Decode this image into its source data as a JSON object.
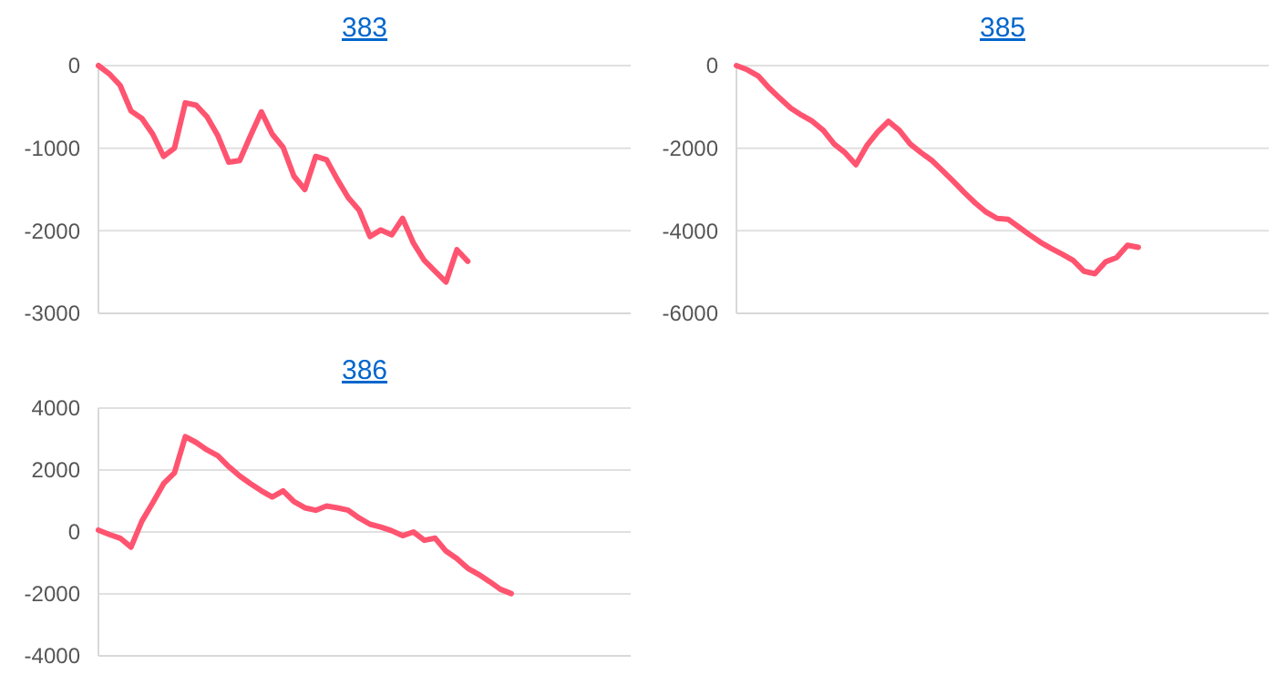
{
  "chart_data": [
    {
      "type": "line",
      "title": "383",
      "categories": [
        null,
        null,
        null,
        null,
        null,
        null,
        null,
        null,
        null,
        null,
        null,
        null,
        null,
        null,
        null,
        null,
        null,
        null,
        null,
        null,
        null,
        null,
        null,
        null,
        null,
        null,
        null,
        null,
        null,
        null,
        null,
        null,
        null,
        null,
        null,
        null,
        null,
        null,
        null,
        null,
        null,
        null,
        null,
        null,
        null,
        null,
        null,
        null,
        null,
        null
      ],
      "series": [
        {
          "color": "#ff5470",
          "values": [
            0,
            -100,
            -240,
            -550,
            -640,
            -830,
            -1100,
            -1000,
            -450,
            -480,
            -620,
            -850,
            -1170,
            -1150,
            -850,
            -560,
            -830,
            -990,
            -1340,
            -1500,
            -1100,
            -1140,
            -1380,
            -1600,
            -1750,
            -2070,
            -1990,
            -2050,
            -1850,
            -2150,
            -2360,
            -2490,
            -2620,
            -2230,
            -2370,
            null,
            null,
            null,
            null,
            null,
            null,
            null,
            null,
            null,
            null,
            null,
            null,
            null,
            null,
            null
          ]
        }
      ],
      "ylim": [
        -3000,
        0
      ],
      "yticks": [
        -3000,
        -2000,
        -1000,
        0
      ],
      "grid": "y",
      "tick_labels": "y",
      "line_style": "solid"
    },
    {
      "type": "line",
      "title": "385",
      "categories": [
        null,
        null,
        null,
        null,
        null,
        null,
        null,
        null,
        null,
        null,
        null,
        null,
        null,
        null,
        null,
        null,
        null,
        null,
        null,
        null,
        null,
        null,
        null,
        null,
        null,
        null,
        null,
        null,
        null,
        null,
        null,
        null,
        null,
        null,
        null,
        null,
        null,
        null,
        null,
        null,
        null,
        null,
        null,
        null,
        null,
        null,
        null,
        null,
        null,
        null
      ],
      "series": [
        {
          "color": "#ff5470",
          "values": [
            0,
            -100,
            -250,
            -540,
            -790,
            -1030,
            -1200,
            -1350,
            -1570,
            -1900,
            -2110,
            -2400,
            -1940,
            -1610,
            -1350,
            -1570,
            -1900,
            -2110,
            -2300,
            -2550,
            -2810,
            -3080,
            -3330,
            -3550,
            -3700,
            -3720,
            -3910,
            -4100,
            -4280,
            -4430,
            -4570,
            -4720,
            -4980,
            -5040,
            -4750,
            -4650,
            -4350,
            -4400,
            null,
            null,
            null,
            null,
            null,
            null,
            null,
            null,
            null,
            null,
            null,
            null
          ]
        }
      ],
      "ylim": [
        -6000,
        0
      ],
      "yticks": [
        -6000,
        -4000,
        -2000,
        0
      ],
      "grid": "y",
      "tick_labels": "y",
      "line_style": "solid"
    },
    {
      "type": "line",
      "title": "386",
      "categories": [
        null,
        null,
        null,
        null,
        null,
        null,
        null,
        null,
        null,
        null,
        null,
        null,
        null,
        null,
        null,
        null,
        null,
        null,
        null,
        null,
        null,
        null,
        null,
        null,
        null,
        null,
        null,
        null,
        null,
        null,
        null,
        null,
        null,
        null,
        null,
        null,
        null,
        null,
        null,
        null,
        null,
        null,
        null,
        null,
        null,
        null,
        null,
        null,
        null,
        null
      ],
      "series": [
        {
          "color": "#ff5470",
          "values": [
            60,
            -80,
            -200,
            -490,
            350,
            940,
            1560,
            1910,
            3080,
            2890,
            2650,
            2460,
            2110,
            1810,
            1560,
            1330,
            1130,
            1330,
            980,
            780,
            700,
            840,
            780,
            700,
            450,
            250,
            160,
            40,
            -120,
            0,
            -270,
            -200,
            -620,
            -860,
            -1170,
            -1370,
            -1600,
            -1850,
            -1990,
            null,
            null,
            null,
            null,
            null,
            null,
            null,
            null,
            null,
            null,
            null
          ]
        }
      ],
      "ylim": [
        -4000,
        4000
      ],
      "yticks": [
        -4000,
        -2000,
        0,
        2000,
        4000
      ],
      "grid": "y",
      "tick_labels": "y",
      "line_style": "solid"
    }
  ]
}
